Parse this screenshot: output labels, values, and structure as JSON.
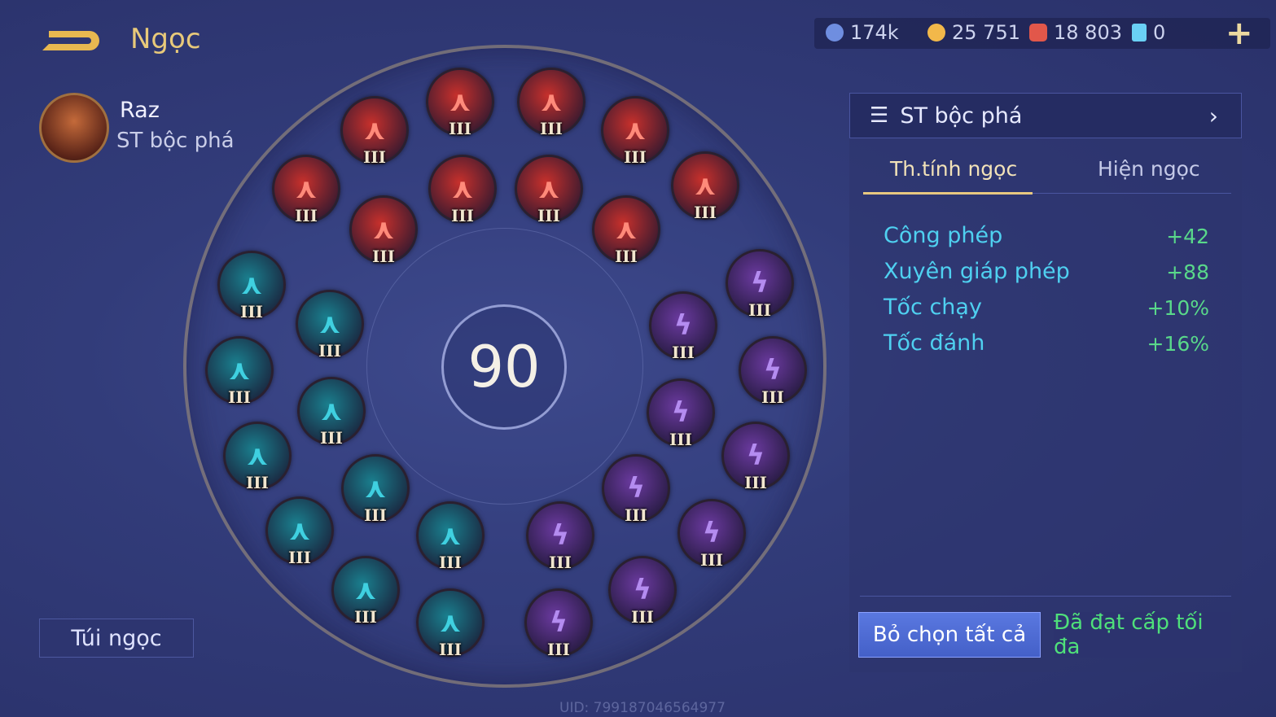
{
  "header": {
    "title": "Ngọc",
    "back_icon": "back-arrow-icon"
  },
  "currencies": [
    {
      "icon": "blue-coin-icon",
      "value": "174k",
      "color": "#6f8ee0"
    },
    {
      "icon": "gold-coin-icon",
      "value": "25 751",
      "color": "#f2b84a"
    },
    {
      "icon": "red-gem-icon",
      "value": "18 803",
      "color": "#e2574a"
    },
    {
      "icon": "card-icon",
      "value": "0",
      "color": "#6ad0f5"
    }
  ],
  "add_icon": "plus-icon",
  "hero": {
    "name": "Raz",
    "preset": "ST bộc phá"
  },
  "bag_button": "Túi ngọc",
  "level": "90",
  "gems": {
    "tier_label": "III",
    "red": 10,
    "blue": 10,
    "purple": 10,
    "colors": {
      "red": "#c7302c",
      "blue": "#1a7f8e",
      "purple": "#6b3aa0"
    }
  },
  "panel": {
    "preset_label": "ST bộc phá",
    "tabs": [
      {
        "label": "Th.tính ngọc",
        "active": true
      },
      {
        "label": "Hiện ngọc",
        "active": false
      }
    ],
    "stats": [
      {
        "name": "Công phép",
        "value": "+42"
      },
      {
        "name": "Xuyên giáp phép",
        "value": "+88"
      },
      {
        "name": "Tốc chạy",
        "value": "+10%"
      },
      {
        "name": "Tốc đánh",
        "value": "+16%"
      }
    ],
    "deselect_button": "Bỏ chọn tất cả",
    "max_level_button": "Đã đạt cấp tối đa"
  },
  "uid": "UID: 799187046564977"
}
